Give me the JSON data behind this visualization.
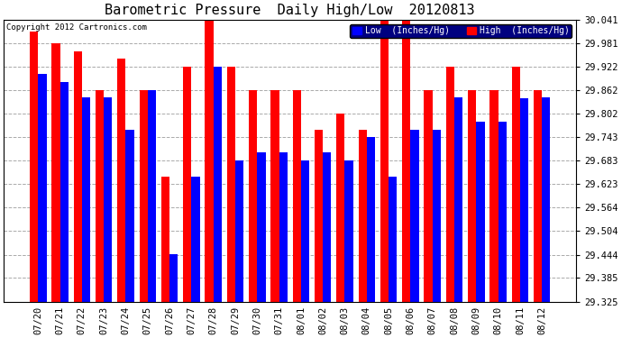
{
  "title": "Barometric Pressure  Daily High/Low  20120813",
  "copyright": "Copyright 2012 Cartronics.com",
  "legend_low": "Low  (Inches/Hg)",
  "legend_high": "High  (Inches/Hg)",
  "categories": [
    "07/20",
    "07/21",
    "07/22",
    "07/23",
    "07/24",
    "07/25",
    "07/26",
    "07/27",
    "07/28",
    "07/29",
    "07/30",
    "07/31",
    "08/01",
    "08/02",
    "08/03",
    "08/04",
    "08/05",
    "08/06",
    "08/07",
    "08/08",
    "08/09",
    "08/10",
    "08/11",
    "08/12"
  ],
  "high_values": [
    30.01,
    29.981,
    29.96,
    29.862,
    29.942,
    29.862,
    29.643,
    29.922,
    30.041,
    29.922,
    29.862,
    29.862,
    29.862,
    29.762,
    29.802,
    29.762,
    30.041,
    30.041,
    29.862,
    29.922,
    29.862,
    29.862,
    29.922,
    29.862
  ],
  "low_values": [
    29.902,
    29.882,
    29.843,
    29.843,
    29.762,
    29.862,
    29.445,
    29.643,
    29.922,
    29.683,
    29.703,
    29.703,
    29.683,
    29.703,
    29.683,
    29.743,
    29.643,
    29.762,
    29.762,
    29.843,
    29.782,
    29.782,
    29.842,
    29.843
  ],
  "ylim_min": 29.325,
  "ylim_max": 30.041,
  "yticks": [
    29.325,
    29.385,
    29.444,
    29.504,
    29.564,
    29.623,
    29.683,
    29.743,
    29.802,
    29.862,
    29.922,
    29.981,
    30.041
  ],
  "bar_width": 0.38,
  "high_color": "#ff0000",
  "low_color": "#0000ff",
  "bg_color": "#ffffff",
  "grid_color": "#aaaaaa",
  "title_fontsize": 11,
  "tick_fontsize": 7.5
}
